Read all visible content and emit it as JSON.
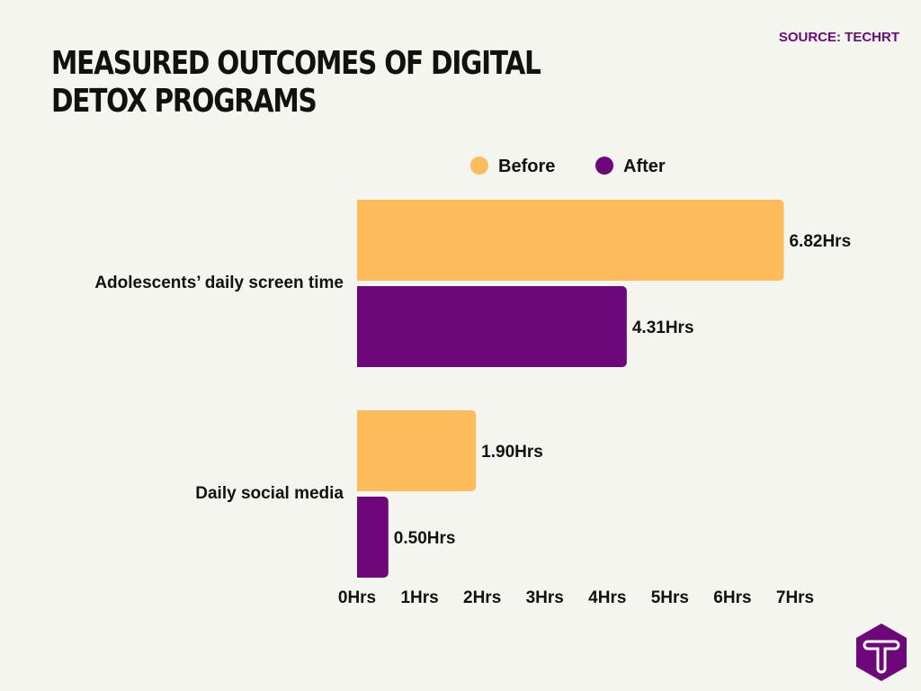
{
  "source": "SOURCE: TECHRT",
  "chart_data": {
    "type": "bar",
    "orientation": "horizontal",
    "title": "MEASURED OUTCOMES OF DIGITAL DETOX PROGRAMS",
    "categories": [
      "Adolescents’ daily screen time",
      "Daily social media"
    ],
    "series": [
      {
        "name": "Before",
        "color": "#fdbb5c",
        "values": [
          6.82,
          1.9
        ],
        "labels": [
          "6.82Hrs",
          "1.90Hrs"
        ]
      },
      {
        "name": "After",
        "color": "#6e087a",
        "values": [
          4.31,
          0.5
        ],
        "labels": [
          "4.31Hrs",
          "0.50Hrs"
        ]
      }
    ],
    "xlim": [
      0,
      7
    ],
    "xticks": [
      "0Hrs",
      "1Hrs",
      "2Hrs",
      "3Hrs",
      "4Hrs",
      "5Hrs",
      "6Hrs",
      "7Hrs"
    ],
    "grid": false,
    "legend": "top"
  },
  "logo": {
    "letter": "T",
    "color": "#6e087a"
  }
}
